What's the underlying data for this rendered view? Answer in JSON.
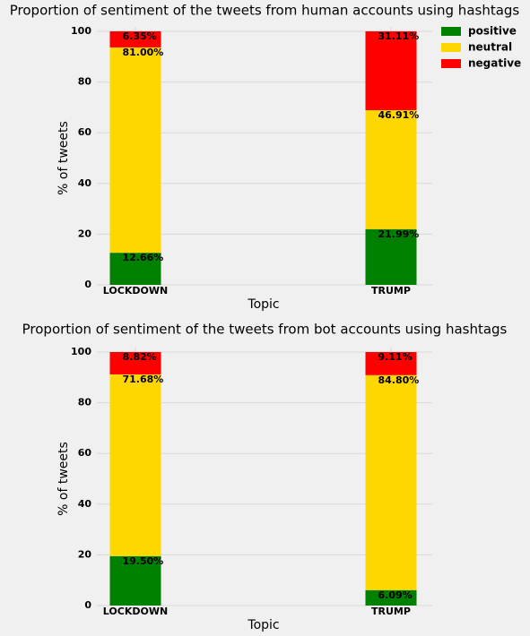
{
  "chart_data": [
    {
      "type": "stacked_bar",
      "title": "Proportion of sentiment of the tweets from human accounts using hashtags",
      "x_label": "Topic",
      "y_label": "% of tweets",
      "categories": [
        "LOCKDOWN",
        "TRUMP"
      ],
      "series": [
        {
          "name": "positive",
          "color": "#008000",
          "values": [
            12.66,
            21.99
          ],
          "value_labels": [
            "12.66%",
            "21.99%"
          ]
        },
        {
          "name": "neutral",
          "color": "#ffd700",
          "values": [
            81.0,
            46.91
          ],
          "value_labels": [
            "81.00%",
            "46.91%"
          ]
        },
        {
          "name": "negative",
          "color": "#ff0000",
          "values": [
            6.35,
            31.11
          ],
          "value_labels": [
            "6.35%",
            "31.11%"
          ]
        }
      ],
      "ylim": [
        0,
        100
      ],
      "yticks": [
        0,
        20,
        40,
        60,
        80,
        100
      ],
      "grid": true,
      "legend": "upper right"
    },
    {
      "type": "stacked_bar",
      "title": "Proportion of sentiment of the tweets from bot accounts using hashtags",
      "x_label": "Topic",
      "y_label": "% of tweets",
      "categories": [
        "LOCKDOWN",
        "TRUMP"
      ],
      "series": [
        {
          "name": "positive",
          "color": "#008000",
          "values": [
            19.5,
            6.09
          ],
          "value_labels": [
            "19.50%",
            "6.09%"
          ]
        },
        {
          "name": "neutral",
          "color": "#ffd700",
          "values": [
            71.68,
            84.8
          ],
          "value_labels": [
            "71.68%",
            "84.80%"
          ]
        },
        {
          "name": "negative",
          "color": "#ff0000",
          "values": [
            8.82,
            9.11
          ],
          "value_labels": [
            "8.82%",
            "9.11%"
          ]
        }
      ],
      "ylim": [
        0,
        100
      ],
      "yticks": [
        0,
        20,
        40,
        60,
        80,
        100
      ],
      "grid": true
    }
  ]
}
